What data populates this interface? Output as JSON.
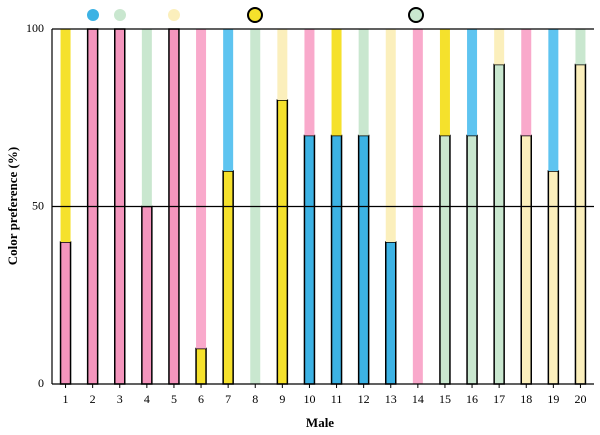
{
  "chart_data": {
    "type": "stacked-bar",
    "x_label": "Male",
    "y_label": "Color preference (%)",
    "categories": [
      "1",
      "2",
      "3",
      "4",
      "5",
      "6",
      "7",
      "8",
      "9",
      "10",
      "11",
      "12",
      "13",
      "14",
      "15",
      "16",
      "17",
      "18",
      "19",
      "20"
    ],
    "ylim": [
      0,
      100
    ],
    "yticks": [
      0,
      50,
      100
    ],
    "series": [
      {
        "outline": true,
        "values": [
          40,
          100,
          100,
          50,
          100,
          10,
          60,
          0,
          80,
          70,
          70,
          70,
          40,
          0,
          70,
          70,
          90,
          70,
          60,
          90
        ],
        "colors": [
          "#f495bd",
          "#f495bd",
          "#f495bd",
          "#f495bd",
          "#f495bd",
          "#f5e12c",
          "#f5e12c",
          "#c9e7cf",
          "#f5e12c",
          "#3cb2e4",
          "#3cb2e4",
          "#3cb2e4",
          "#3cb2e4",
          "#f9a9cb",
          "#c9e7cf",
          "#c9e7cf",
          "#c9e7cf",
          "#fbefbc",
          "#fbefbc",
          "#fbefbc"
        ]
      },
      {
        "outline": false,
        "values": [
          60,
          0,
          0,
          50,
          0,
          90,
          40,
          100,
          20,
          30,
          30,
          30,
          60,
          100,
          30,
          30,
          10,
          30,
          40,
          10
        ],
        "colors": [
          "#f5e12c",
          "#f495bd",
          "#f495bd",
          "#c9e7cf",
          "#f495bd",
          "#f9a9cb",
          "#5ec4f0",
          "#c9e7cf",
          "#fbefbc",
          "#f9a9cb",
          "#f5e12c",
          "#c9e7cf",
          "#fbefbc",
          "#f9a9cb",
          "#f5e12c",
          "#5ec4f0",
          "#fbefbc",
          "#f9a9cb",
          "#5ec4f0",
          "#c9e7cf"
        ]
      }
    ]
  }
}
